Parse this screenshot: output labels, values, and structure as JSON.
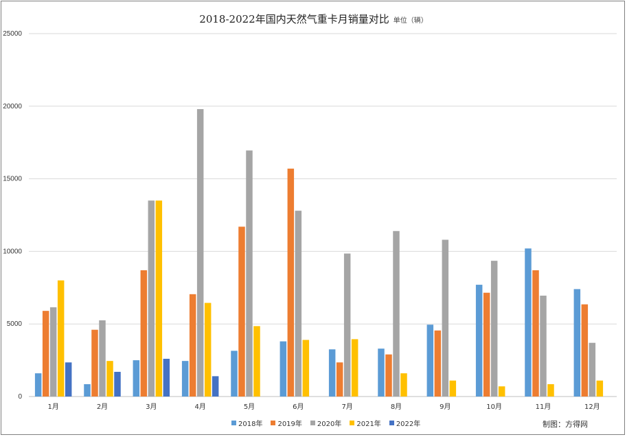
{
  "chart_data": {
    "type": "bar",
    "title": "2018-2022年国内天然气重卡月销量对比",
    "unit_label": "单位（辆）",
    "categories": [
      "1月",
      "2月",
      "3月",
      "4月",
      "5月",
      "6月",
      "7月",
      "8月",
      "9月",
      "10月",
      "11月",
      "12月"
    ],
    "ylim": [
      0,
      25000
    ],
    "yticks": [
      0,
      5000,
      10000,
      15000,
      20000,
      25000
    ],
    "grid": true,
    "legend_position": "bottom",
    "series": [
      {
        "name": "2018年",
        "color": "#5B9BD5",
        "values": [
          1600,
          850,
          2500,
          2450,
          3150,
          3800,
          3250,
          3300,
          4950,
          7700,
          10200,
          7400
        ]
      },
      {
        "name": "2019年",
        "color": "#ED7D31",
        "values": [
          5900,
          4600,
          8700,
          7050,
          11700,
          15700,
          2350,
          2900,
          4550,
          7150,
          8700,
          6350
        ]
      },
      {
        "name": "2020年",
        "color": "#A5A5A5",
        "values": [
          6150,
          5250,
          13500,
          19800,
          16950,
          12800,
          9850,
          11400,
          10800,
          9350,
          6950,
          3700
        ]
      },
      {
        "name": "2021年",
        "color": "#FFC000",
        "values": [
          8000,
          2450,
          13500,
          6450,
          4850,
          3900,
          3950,
          1600,
          1100,
          700,
          850,
          1100
        ]
      },
      {
        "name": "2022年",
        "color": "#4472C4",
        "values": [
          2350,
          1700,
          2600,
          1400,
          null,
          null,
          null,
          null,
          null,
          null,
          null,
          null
        ]
      }
    ],
    "source": "制图：方得网"
  }
}
